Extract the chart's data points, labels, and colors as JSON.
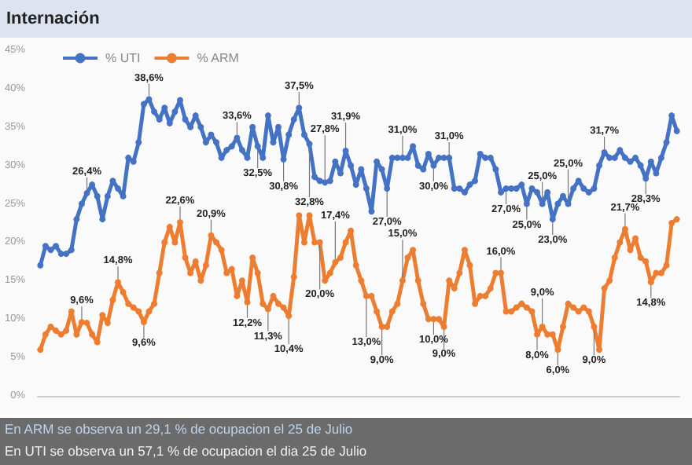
{
  "chart_data": {
    "type": "line",
    "title": "Internación",
    "categories": [
      null,
      null,
      null,
      null,
      null,
      null,
      null,
      null,
      null,
      null,
      null,
      null,
      null,
      null,
      null,
      null,
      null,
      null,
      null,
      null,
      null,
      null,
      null,
      null,
      null,
      null,
      null,
      null,
      null,
      null,
      null,
      null,
      null,
      null,
      null,
      null,
      null,
      null,
      null,
      null,
      null,
      null,
      null,
      null,
      null,
      null,
      null,
      null,
      null,
      null,
      null,
      null,
      null,
      null,
      null,
      null,
      null,
      null,
      null,
      null,
      null,
      null,
      null,
      null,
      null,
      null,
      null,
      null,
      null,
      null,
      null,
      null,
      null,
      null,
      null,
      null,
      null,
      null,
      null,
      null,
      null,
      null,
      null,
      null,
      null,
      null,
      null,
      null,
      null,
      null,
      null,
      null,
      null,
      null,
      null,
      null,
      null,
      null,
      null,
      null,
      null,
      null,
      null,
      null,
      null,
      null,
      null,
      null,
      null,
      null,
      null,
      null,
      null,
      null,
      null,
      null,
      null,
      null,
      null,
      null,
      null,
      null,
      null,
      null
    ],
    "series": [
      {
        "name": "% UTI",
        "color": "#4472c4",
        "values": [
          17,
          19.5,
          19,
          19.5,
          18.5,
          18.5,
          19,
          23,
          25,
          26.4,
          27.5,
          26,
          23,
          26,
          28,
          27,
          26,
          31,
          30.5,
          33,
          38,
          38.6,
          37,
          36,
          37.5,
          35.5,
          37,
          38.5,
          36,
          35,
          36.5,
          35,
          33,
          34,
          33,
          31,
          32,
          32.5,
          33.6,
          32,
          31,
          35,
          32.5,
          31,
          36.5,
          33,
          35,
          30.8,
          34,
          36,
          37.5,
          34,
          32.8,
          28.5,
          28,
          27.8,
          28,
          30.5,
          29,
          31.9,
          30,
          27.5,
          29.5,
          27,
          24,
          30.5,
          29.5,
          27,
          31,
          31,
          31,
          31,
          32.5,
          30,
          29.5,
          31.5,
          30,
          31,
          31,
          31,
          27,
          27,
          26.5,
          27.5,
          28,
          31.5,
          31,
          31,
          29.5,
          26.5,
          27,
          27,
          27,
          27.5,
          25,
          27,
          26.5,
          25,
          26.5,
          23,
          25,
          26,
          25,
          27,
          28,
          27,
          26.5,
          27,
          30,
          31.7,
          31,
          31,
          32,
          31,
          30.5,
          31,
          30,
          28.3,
          30.5,
          29,
          31,
          33,
          36.5,
          34.5
        ],
        "value_labels": [
          null,
          null,
          null,
          null,
          null,
          null,
          null,
          null,
          null,
          "26,4%",
          null,
          null,
          null,
          null,
          null,
          null,
          null,
          null,
          null,
          null,
          null,
          "38,6%",
          null,
          null,
          null,
          null,
          null,
          null,
          null,
          null,
          null,
          null,
          null,
          null,
          null,
          null,
          null,
          null,
          "33,6%",
          null,
          null,
          null,
          "32,5%",
          null,
          null,
          null,
          null,
          "30,8%",
          null,
          null,
          "37,5%",
          null,
          "32,8%",
          null,
          null,
          "27,8%",
          null,
          null,
          null,
          "31,9%",
          null,
          null,
          null,
          null,
          null,
          null,
          null,
          "27,0%",
          null,
          null,
          "31,0%",
          null,
          null,
          null,
          null,
          null,
          "30,0%",
          null,
          null,
          "31,0%",
          null,
          null,
          null,
          null,
          null,
          null,
          null,
          null,
          null,
          null,
          "27,0%",
          null,
          null,
          null,
          "25,0%",
          null,
          null,
          "25,0%",
          null,
          "23,0%",
          null,
          null,
          "25,0%",
          null,
          null,
          null,
          null,
          null,
          null,
          "31,7%",
          null,
          null,
          null,
          null,
          null,
          null,
          null,
          "28,3%",
          null,
          null,
          null,
          null,
          null,
          null
        ]
      },
      {
        "name": "% ARM",
        "color": "#ed7d31",
        "values": [
          6,
          8,
          9,
          8.5,
          8,
          8.5,
          11,
          8,
          9.6,
          9.5,
          8,
          7,
          10.5,
          9.5,
          12.5,
          14.8,
          13.5,
          12,
          11.5,
          11,
          9.6,
          11,
          12,
          16,
          20,
          22,
          20,
          22.6,
          18,
          16,
          17.5,
          15,
          17,
          20.9,
          20,
          19,
          16,
          16.5,
          13,
          15,
          12.2,
          18,
          16,
          12,
          11.3,
          13,
          12,
          11.5,
          10.4,
          15.5,
          23.5,
          20,
          23.5,
          20,
          20,
          15,
          16,
          17.4,
          18,
          20,
          21.5,
          17,
          15,
          13,
          13,
          11,
          9,
          9,
          11,
          12,
          15,
          18,
          19,
          15,
          12,
          10,
          10,
          10,
          9,
          15,
          14,
          16,
          19,
          17,
          12,
          13,
          13,
          14,
          16,
          16,
          11,
          11,
          11.5,
          12,
          11.5,
          11,
          8,
          9,
          8,
          8,
          6,
          9,
          12,
          11.5,
          11,
          11.5,
          11,
          9,
          6,
          14,
          15,
          18,
          20,
          21.7,
          19,
          20.5,
          18,
          17.5,
          14.8,
          16,
          16,
          17,
          22.5,
          23
        ],
        "value_labels": [
          null,
          null,
          null,
          null,
          null,
          null,
          null,
          null,
          "9,6%",
          null,
          null,
          null,
          null,
          null,
          null,
          "14,8%",
          null,
          null,
          null,
          null,
          "9,6%",
          null,
          null,
          null,
          null,
          null,
          null,
          "22,6%",
          null,
          null,
          null,
          null,
          null,
          "20,9%",
          null,
          null,
          null,
          null,
          null,
          null,
          "12,2%",
          null,
          null,
          null,
          "11,3%",
          null,
          null,
          null,
          "10,4%",
          null,
          null,
          null,
          null,
          null,
          "20,0%",
          null,
          null,
          "17,4%",
          null,
          null,
          null,
          null,
          null,
          "13,0%",
          null,
          null,
          "9,0%",
          null,
          null,
          null,
          "15,0%",
          null,
          null,
          null,
          null,
          null,
          "10,0%",
          null,
          "9,0%",
          null,
          null,
          null,
          null,
          null,
          null,
          null,
          null,
          null,
          null,
          "16,0%",
          null,
          null,
          null,
          null,
          null,
          null,
          "8,0%",
          "9,0%",
          null,
          null,
          "6,0%",
          null,
          null,
          null,
          null,
          null,
          null,
          "9,0%",
          null,
          null,
          null,
          null,
          null,
          "21,7%",
          null,
          null,
          null,
          null,
          "14,8%",
          null,
          null,
          null,
          null,
          null
        ]
      }
    ],
    "ylim": [
      0,
      45
    ],
    "yticks": [
      {
        "value": 0,
        "label": "0%"
      },
      {
        "value": 5,
        "label": "5%"
      },
      {
        "value": 10,
        "label": "10%"
      },
      {
        "value": 15,
        "label": "15%"
      },
      {
        "value": 20,
        "label": "20%"
      },
      {
        "value": 25,
        "label": "25%"
      },
      {
        "value": 30,
        "label": "30%"
      },
      {
        "value": 35,
        "label": "35%"
      },
      {
        "value": 40,
        "label": "40%"
      },
      {
        "value": 45,
        "label": "45%"
      }
    ],
    "tick_labels": "y",
    "grid": false,
    "legend": "top left",
    "marker": "circle",
    "line_style": "solid",
    "annotations": [
      "En ARM se observa un 29,1 % de ocupacion el 25 de Julio",
      "En UTI se observa un 57,1 % de ocupacion el dia 25 de Julio"
    ]
  }
}
